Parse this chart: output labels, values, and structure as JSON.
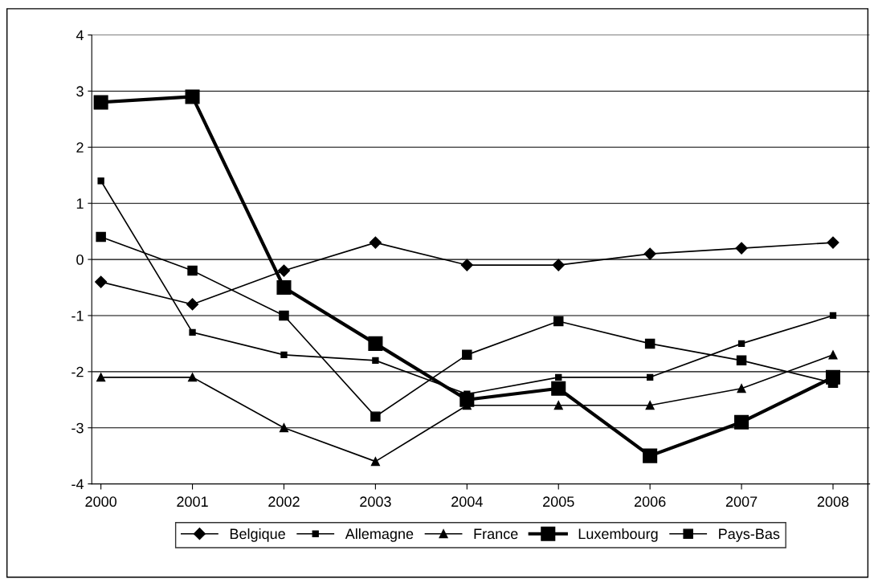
{
  "chart_data": {
    "type": "line",
    "categories": [
      "2000",
      "2001",
      "2002",
      "2003",
      "2004",
      "2005",
      "2006",
      "2007",
      "2008"
    ],
    "series": [
      {
        "name": "Belgique",
        "color": "#000000",
        "marker": "diamond",
        "values": [
          -0.4,
          -0.8,
          -0.2,
          0.3,
          -0.1,
          -0.1,
          0.1,
          0.2,
          0.3
        ]
      },
      {
        "name": "Allemagne",
        "color": "#000000",
        "marker": "square",
        "values": [
          1.4,
          -1.3,
          -1.7,
          -1.8,
          -2.4,
          -2.1,
          -2.1,
          -1.5,
          -1.0
        ]
      },
      {
        "name": "France",
        "color": "#000000",
        "marker": "triangle",
        "values": [
          -2.1,
          -2.1,
          -3.0,
          -3.6,
          -2.6,
          -2.6,
          -2.6,
          -2.3,
          -1.7
        ]
      },
      {
        "name": "Luxembourg",
        "color": "#000000",
        "marker": "square",
        "values": [
          2.8,
          2.9,
          -0.5,
          -1.5,
          -2.5,
          -2.3,
          -3.5,
          -2.9,
          -2.1
        ]
      },
      {
        "name": "Pays-Bas",
        "color": "#000000",
        "marker": "square",
        "values": [
          0.4,
          -0.2,
          -1.0,
          -2.8,
          -1.7,
          -1.1,
          -1.5,
          -1.8,
          -2.2
        ]
      }
    ],
    "ylim": [
      -4,
      4
    ],
    "yticks": [
      -4,
      -3,
      -2,
      -1,
      0,
      1,
      2,
      3,
      4
    ],
    "grid": "y",
    "legend": "bottom",
    "line_style": "solid"
  }
}
